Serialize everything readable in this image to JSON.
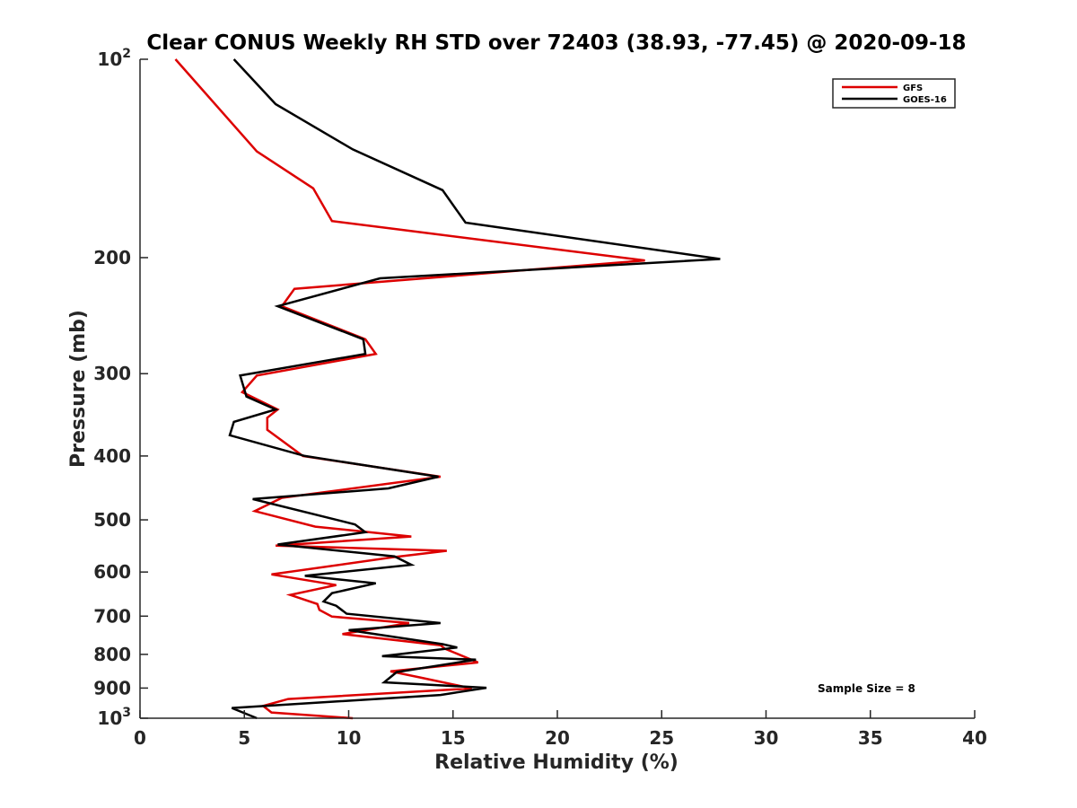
{
  "chart_data": {
    "type": "line",
    "title": "Clear CONUS Weekly RH STD over 72403 (38.93, -77.45) @ 2020-09-18",
    "xlabel": "Relative Humidity (%)",
    "ylabel": "Pressure (mb)",
    "xlim": [
      0,
      40
    ],
    "ylim": [
      100,
      1000
    ],
    "y_scale": "log",
    "y_reversed": true,
    "x_ticks": [
      "0",
      "5",
      "10",
      "15",
      "20",
      "25",
      "30",
      "35",
      "40"
    ],
    "y_ticks": [
      {
        "value": 100,
        "label": "10",
        "sup": "2"
      },
      {
        "value": 200,
        "label": "200",
        "sup": ""
      },
      {
        "value": 300,
        "label": "300",
        "sup": ""
      },
      {
        "value": 400,
        "label": "400",
        "sup": ""
      },
      {
        "value": 500,
        "label": "500",
        "sup": ""
      },
      {
        "value": 600,
        "label": "600",
        "sup": ""
      },
      {
        "value": 700,
        "label": "700",
        "sup": ""
      },
      {
        "value": 800,
        "label": "800",
        "sup": ""
      },
      {
        "value": 900,
        "label": "900",
        "sup": ""
      },
      {
        "value": 1000,
        "label": "10",
        "sup": "3"
      }
    ],
    "grid": false,
    "legend_position": "top-right",
    "annotation": "Sample Size = 8",
    "series": [
      {
        "name": "GFS",
        "color": "#dd0000",
        "points": [
          [
            1.7,
            100
          ],
          [
            5.6,
            138
          ],
          [
            8.3,
            157
          ],
          [
            9.2,
            176
          ],
          [
            24.2,
            202
          ],
          [
            7.4,
            223
          ],
          [
            6.8,
            237
          ],
          [
            10.8,
            266
          ],
          [
            11.3,
            280
          ],
          [
            5.6,
            302
          ],
          [
            4.9,
            320
          ],
          [
            6.6,
            340
          ],
          [
            6.1,
            350
          ],
          [
            6.1,
            365
          ],
          [
            7.8,
            400
          ],
          [
            14.4,
            430
          ],
          [
            6.8,
            463
          ],
          [
            5.5,
            485
          ],
          [
            8.4,
            512
          ],
          [
            13.0,
            530
          ],
          [
            6.5,
            547
          ],
          [
            14.7,
            557
          ],
          [
            12.1,
            570
          ],
          [
            6.3,
            605
          ],
          [
            9.4,
            628
          ],
          [
            7.2,
            650
          ],
          [
            8.5,
            671
          ],
          [
            8.6,
            685
          ],
          [
            9.2,
            701
          ],
          [
            12.9,
            717
          ],
          [
            9.7,
            745
          ],
          [
            14.4,
            775
          ],
          [
            14.6,
            784
          ],
          [
            16.2,
            823
          ],
          [
            12.0,
            849
          ],
          [
            13.4,
            867
          ],
          [
            15.9,
            901
          ],
          [
            7.1,
            935
          ],
          [
            5.9,
            958
          ],
          [
            6.3,
            980
          ],
          [
            10.2,
            1000
          ]
        ]
      },
      {
        "name": "GOES-16",
        "color": "#000000",
        "points": [
          [
            4.5,
            100
          ],
          [
            6.5,
            117
          ],
          [
            10.2,
            137
          ],
          [
            14.5,
            158
          ],
          [
            15.6,
            177
          ],
          [
            27.8,
            201
          ],
          [
            11.5,
            215
          ],
          [
            6.6,
            237
          ],
          [
            10.7,
            266
          ],
          [
            10.8,
            280
          ],
          [
            4.8,
            302
          ],
          [
            5.1,
            325
          ],
          [
            6.5,
            340
          ],
          [
            4.5,
            355
          ],
          [
            4.3,
            372
          ],
          [
            7.9,
            400
          ],
          [
            14.3,
            430
          ],
          [
            11.9,
            448
          ],
          [
            5.4,
            465
          ],
          [
            10.3,
            508
          ],
          [
            10.8,
            522
          ],
          [
            6.6,
            545
          ],
          [
            12.2,
            568
          ],
          [
            13.0,
            585
          ],
          [
            7.9,
            608
          ],
          [
            11.3,
            624
          ],
          [
            9.2,
            646
          ],
          [
            8.8,
            665
          ],
          [
            9.4,
            675
          ],
          [
            9.9,
            694
          ],
          [
            14.4,
            717
          ],
          [
            10.0,
            735
          ],
          [
            14.5,
            772
          ],
          [
            15.2,
            781
          ],
          [
            11.6,
            805
          ],
          [
            16.1,
            815
          ],
          [
            12.3,
            851
          ],
          [
            11.7,
            882
          ],
          [
            16.6,
            899
          ],
          [
            14.4,
            922
          ],
          [
            4.4,
            965
          ],
          [
            5.6,
            1000
          ]
        ]
      }
    ]
  }
}
